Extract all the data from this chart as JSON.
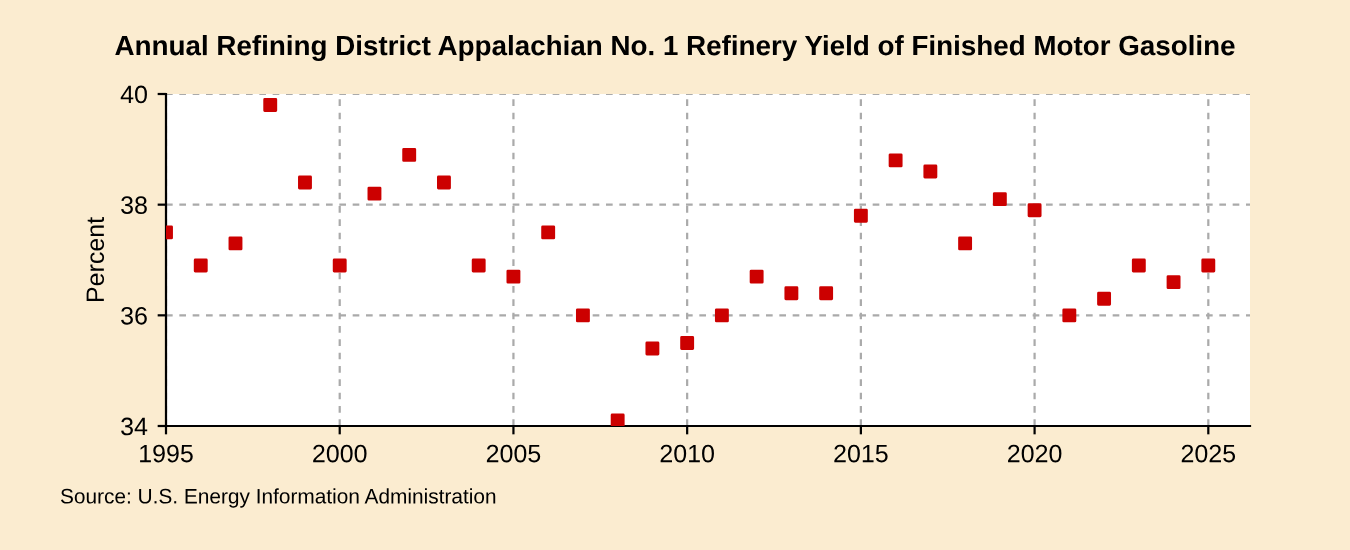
{
  "chart_data": {
    "type": "scatter",
    "title": "Annual Refining District Appalachian No. 1 Refinery Yield of Finished Motor Gasoline",
    "ylabel": "Percent",
    "x": [
      1995,
      1996,
      1997,
      1998,
      1999,
      2000,
      2001,
      2002,
      2003,
      2004,
      2005,
      2006,
      2007,
      2008,
      2009,
      2010,
      2011,
      2012,
      2013,
      2014,
      2015,
      2016,
      2017,
      2018,
      2019,
      2020,
      2021,
      2022,
      2023,
      2024,
      2025
    ],
    "series": [
      {
        "color": "#cc0000",
        "values": [
          37.5,
          36.9,
          37.3,
          39.8,
          38.4,
          36.9,
          38.2,
          38.9,
          38.4,
          36.9,
          36.7,
          37.5,
          36.0,
          34.1,
          35.4,
          35.5,
          36.0,
          36.7,
          36.4,
          36.4,
          37.8,
          38.8,
          38.6,
          37.3,
          38.1,
          37.9,
          36.0,
          36.3,
          36.9,
          36.6,
          36.9
        ]
      }
    ],
    "xlim": [
      1995,
      2026.2
    ],
    "xticks": [
      1995,
      2000,
      2005,
      2010,
      2015,
      2020,
      2025
    ],
    "ylim": [
      34,
      40
    ],
    "yticks": [
      34,
      36,
      38,
      40
    ],
    "grid": true,
    "marker": "square",
    "annotations": [
      "Source: U.S. Energy Information Administration"
    ]
  }
}
